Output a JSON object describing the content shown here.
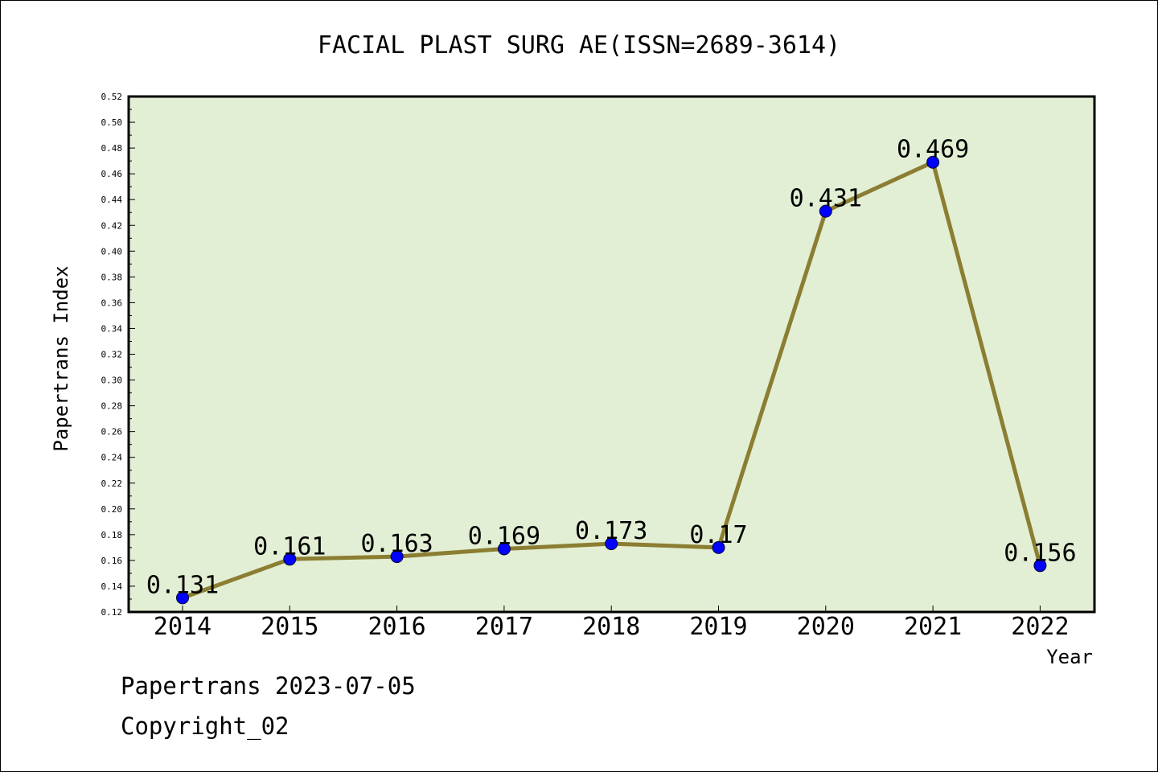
{
  "chart_data": {
    "type": "line",
    "title": "FACIAL PLAST SURG AE(ISSN=2689-3614)",
    "xlabel": "Year",
    "ylabel": "Papertrans Index",
    "categories": [
      "2014",
      "2015",
      "2016",
      "2017",
      "2018",
      "2019",
      "2020",
      "2021",
      "2022"
    ],
    "values": [
      0.131,
      0.161,
      0.163,
      0.169,
      0.173,
      0.17,
      0.431,
      0.469,
      0.156
    ],
    "data_labels": [
      "0.131",
      "0.161",
      "0.163",
      "0.169",
      "0.173",
      "0.17",
      "0.431",
      "0.469",
      "0.156"
    ],
    "ylim": [
      0.12,
      0.52
    ],
    "yticks": [
      "0.12",
      "0.14",
      "0.16",
      "0.18",
      "0.20",
      "0.22",
      "0.24",
      "0.26",
      "0.28",
      "0.30",
      "0.32",
      "0.34",
      "0.36",
      "0.38",
      "0.40",
      "0.42",
      "0.44",
      "0.46",
      "0.48",
      "0.50",
      "0.52"
    ],
    "grid": false,
    "colors": {
      "plot_background": "#e2efd4",
      "line": "#8b7d32",
      "marker": "#0000ff"
    }
  },
  "footer": {
    "line1": "Papertrans 2023-07-05",
    "line2": "Copyright_02"
  }
}
